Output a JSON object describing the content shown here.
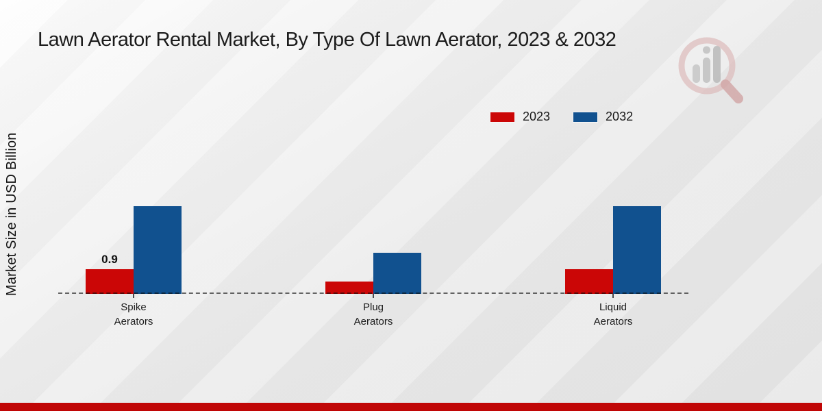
{
  "page": {
    "title": "Lawn Aerator Rental Market, By Type Of Lawn Aerator, 2023 & 2032",
    "y_axis_label": "Market Size in USD Billion",
    "footer_bar_color": "#c00606",
    "watermark_icon": "magnifier-bar-chart-logo"
  },
  "legend": {
    "position": "top-right",
    "items": [
      {
        "label": "2023",
        "color": "#cb0606"
      },
      {
        "label": "2032",
        "color": "#11518f"
      }
    ]
  },
  "chart_data": {
    "type": "bar",
    "title": "Lawn Aerator Rental Market, By Type Of Lawn Aerator, 2023 & 2032",
    "categories": [
      "Spike Aerators",
      "Plug Aerators",
      "Liquid Aerators"
    ],
    "series": [
      {
        "name": "2023",
        "color": "#cb0606",
        "values": [
          0.9,
          0.45,
          0.9
        ]
      },
      {
        "name": "2032",
        "color": "#11518f",
        "values": [
          3.2,
          1.5,
          3.2
        ]
      }
    ],
    "bar_value_labels": [
      {
        "series_index": 0,
        "category_index": 0,
        "text": "0.9"
      }
    ],
    "xlabel": "",
    "ylabel": "Market Size in USD Billion",
    "unit": "USD Billion",
    "ylim": [
      0,
      3.5
    ],
    "grid": false,
    "axis_baseline_style": "dashed",
    "legend_position": "top-right"
  }
}
